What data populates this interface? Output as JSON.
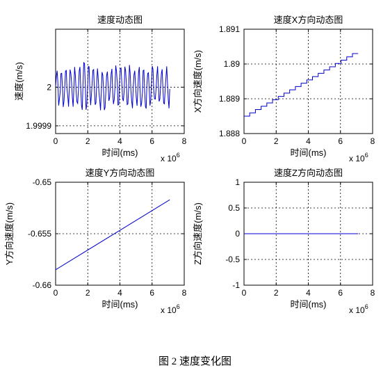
{
  "caption": "图 2 速度变化图",
  "chart_data": [
    {
      "type": "line",
      "title": "速度动态图",
      "xlabel": "时间(ms)",
      "ylabel": "速度(m/s)",
      "x_exponent": "x 10^6",
      "xlim": [
        0,
        8
      ],
      "ylim": [
        1.99988,
        2.00015
      ],
      "xticks": [
        0,
        2,
        4,
        6,
        8
      ],
      "xtick_labels": [
        "0",
        "2",
        "4",
        "6",
        "8"
      ],
      "yticks": [
        1.9999,
        2.0
      ],
      "ytick_labels": [
        "1.9999",
        "2"
      ],
      "grid": true,
      "color": "#0000cc",
      "pattern": "oscillating",
      "series": [
        {
          "x": [
            0.0,
            7.1
          ],
          "y": [
            2.0,
            2.0
          ]
        }
      ]
    },
    {
      "type": "line",
      "title": "速度X方向动态图",
      "xlabel": "时间(ms)",
      "ylabel": "X方向速度(m/s)",
      "x_exponent": "x 10^6",
      "xlim": [
        0,
        8
      ],
      "ylim": [
        1.888,
        1.891
      ],
      "xticks": [
        0,
        2,
        4,
        6,
        8
      ],
      "xtick_labels": [
        "0",
        "2",
        "4",
        "6",
        "8"
      ],
      "yticks": [
        1.888,
        1.889,
        1.89,
        1.891
      ],
      "ytick_labels": [
        "1.888",
        "1.889",
        "1.89",
        "1.891"
      ],
      "grid": true,
      "color": "#0000cc",
      "pattern": "staircase",
      "series": [
        {
          "x": [
            0.0,
            7.1
          ],
          "y": [
            1.8885,
            1.8903
          ]
        }
      ]
    },
    {
      "type": "line",
      "title": "速度Y方向动态图",
      "xlabel": "时间(ms)",
      "ylabel": "Y方向速度(m/s)",
      "x_exponent": "x 10^6",
      "xlim": [
        0,
        8
      ],
      "ylim": [
        -0.66,
        -0.65
      ],
      "xticks": [
        0,
        2,
        4,
        6,
        8
      ],
      "xtick_labels": [
        "0",
        "2",
        "4",
        "6",
        "8"
      ],
      "yticks": [
        -0.66,
        -0.655,
        -0.65
      ],
      "ytick_labels": [
        "-0.66",
        "-0.655",
        "-0.65"
      ],
      "grid": true,
      "color": "#0000cc",
      "pattern": "linear",
      "series": [
        {
          "x": [
            0.0,
            7.1
          ],
          "y": [
            -0.6585,
            -0.6517
          ]
        }
      ]
    },
    {
      "type": "line",
      "title": "速度Z方向动态图",
      "xlabel": "时间(ms)",
      "ylabel": "Z方向速度(m/s)",
      "x_exponent": "x 10^6",
      "xlim": [
        0,
        8
      ],
      "ylim": [
        -1,
        1
      ],
      "xticks": [
        0,
        2,
        4,
        6,
        8
      ],
      "xtick_labels": [
        "0",
        "2",
        "4",
        "6",
        "8"
      ],
      "yticks": [
        -1,
        -0.5,
        0,
        0.5,
        1
      ],
      "ytick_labels": [
        "-1",
        "-0.5",
        "0",
        "0.5",
        "1"
      ],
      "grid": true,
      "color": "#0000cc",
      "pattern": "linear",
      "series": [
        {
          "x": [
            0.0,
            7.1
          ],
          "y": [
            0,
            0
          ]
        }
      ]
    }
  ]
}
